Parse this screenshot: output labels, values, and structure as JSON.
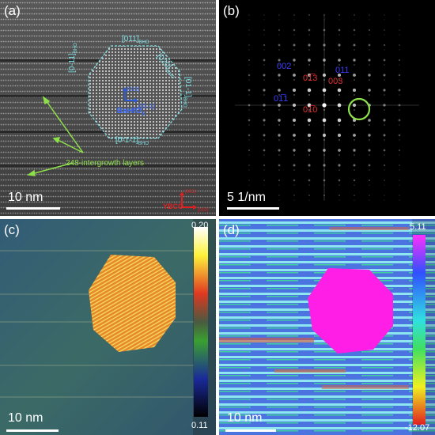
{
  "panels": {
    "a": {
      "label": "(a)",
      "scale_bar": "10 nm",
      "facet_top": "[011]",
      "facet_top_sub": "BHO",
      "facet_left": "[0-11]",
      "facet_left_sub": "BHO",
      "facet_upper_right": "[020]",
      "facet_upper_right_sub": "BHO",
      "facet_right": "[01-1]",
      "facet_right_sub": "BHO",
      "facet_bottom": "[0-1-1]",
      "facet_bottom_sub": "BHO",
      "axis_up": "[011]",
      "axis_right": "[01-1]",
      "material": "BaHfO",
      "material_sub": "3",
      "annotation": "248-intergrowth layers",
      "substrate": "YBCO",
      "substrate_axis_up": "[001]",
      "substrate_axis_right": "[010]"
    },
    "b": {
      "label": "(b)",
      "scale_bar": "5 1/nm",
      "spots_blue": [
        "002",
        "011",
        "01̅1"
      ],
      "spots_red": [
        "01̅3",
        "003",
        "01̅0"
      ]
    },
    "c": {
      "label": "(c)",
      "scale_bar": "10 nm",
      "colorbar_max": "0.20",
      "colorbar_min": "0.11"
    },
    "d": {
      "label": "(d)",
      "scale_bar": "10 nm",
      "colorbar_max": "5.11",
      "colorbar_min": "-12.07"
    }
  }
}
